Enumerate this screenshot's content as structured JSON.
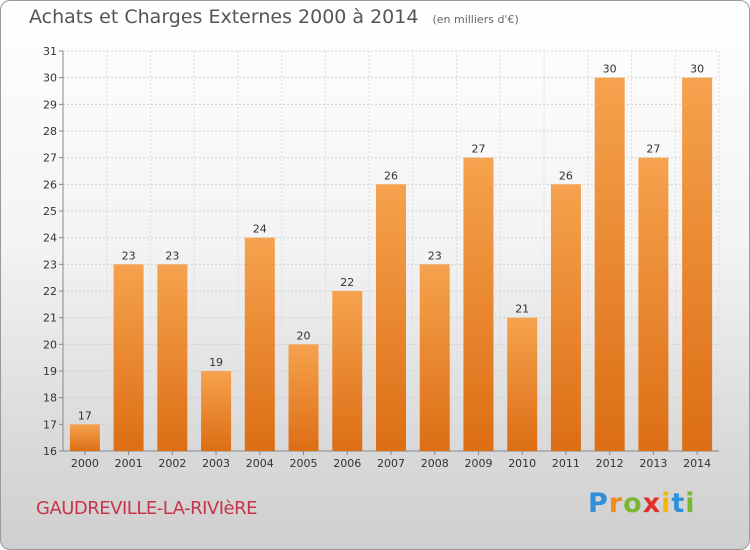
{
  "header": {
    "title": "Achats et Charges Externes 2000 à 2014",
    "subtitle": "(en milliers d'€)"
  },
  "footer": {
    "commune": "GAUDREVILLE-LA-RIVIèRE",
    "logo": {
      "letters": [
        "P",
        "r",
        "o",
        "x",
        "i",
        "t",
        "i"
      ],
      "colors": [
        "#2f8fd8",
        "#f28b1c",
        "#7ab834",
        "#e0302a",
        "#f5b800",
        "#2f8fd8",
        "#7ab834"
      ]
    }
  },
  "chart_data": {
    "type": "bar",
    "title": "Achats et Charges Externes 2000 à 2014",
    "subtitle": "(en milliers d'€)",
    "categories": [
      "2000",
      "2001",
      "2002",
      "2003",
      "2004",
      "2005",
      "2006",
      "2007",
      "2008",
      "2009",
      "2010",
      "2011",
      "2012",
      "2013",
      "2014"
    ],
    "values": [
      17,
      23,
      23,
      19,
      24,
      20,
      22,
      26,
      23,
      27,
      21,
      26,
      30,
      27,
      30
    ],
    "ylim": [
      16,
      31
    ],
    "yticks": [
      16,
      17,
      18,
      19,
      20,
      21,
      22,
      23,
      24,
      25,
      26,
      27,
      28,
      29,
      30,
      31
    ],
    "xlabel": "",
    "ylabel": "",
    "grid": true,
    "bar_color": "#f07e20"
  }
}
